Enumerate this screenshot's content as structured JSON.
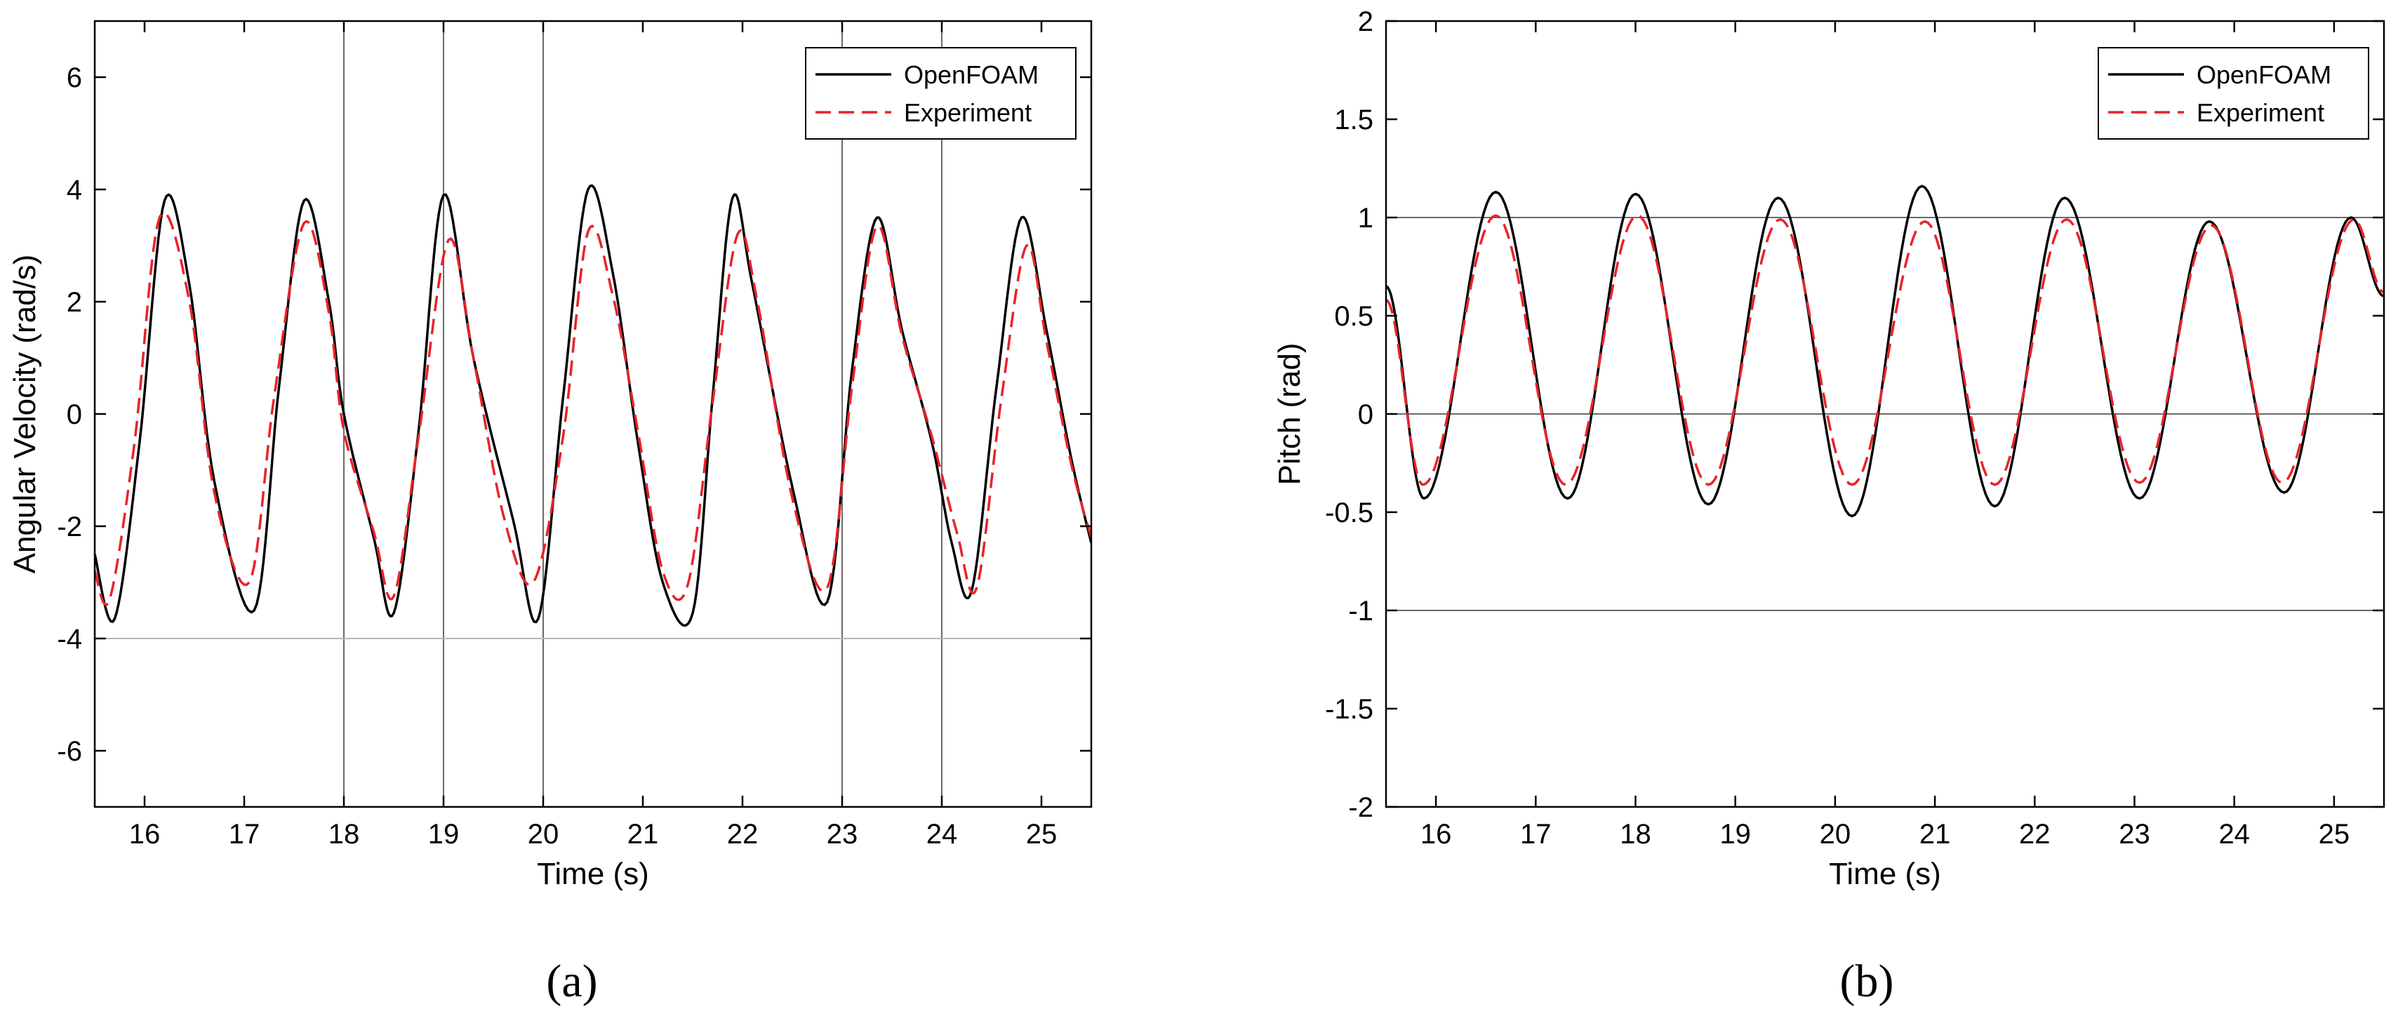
{
  "chart_data": [
    {
      "type": "line",
      "panel_label": "(a)",
      "xlabel": "Time (s)",
      "ylabel": "Angular Velocity (rad/s)",
      "xlim": [
        15.5,
        25.5
      ],
      "ylim": [
        -7,
        7
      ],
      "xticks": [
        16,
        17,
        18,
        19,
        20,
        21,
        22,
        23,
        24,
        25
      ],
      "yticks": [
        -6,
        -4,
        -2,
        0,
        2,
        4,
        6
      ],
      "grid": false,
      "legend_position": "top-right",
      "reference_lines": {
        "vertical_x": [
          18,
          19,
          20,
          23,
          24
        ],
        "horizontal_y": [
          -4
        ]
      },
      "series": [
        {
          "name": "OpenFOAM",
          "color": "#000000",
          "style": "solid",
          "x": [
            15.5,
            15.7,
            15.95,
            16.2,
            16.45,
            16.7,
            17.1,
            17.35,
            17.6,
            17.85,
            18.0,
            18.3,
            18.5,
            18.75,
            19.0,
            19.3,
            19.7,
            19.95,
            20.2,
            20.45,
            20.7,
            20.95,
            21.2,
            21.5,
            21.7,
            21.9,
            22.1,
            22.5,
            22.85,
            23.1,
            23.35,
            23.6,
            23.9,
            24.1,
            24.3,
            24.55,
            24.8,
            25.05,
            25.3,
            25.5
          ],
          "y": [
            -2.5,
            -3.65,
            -0.5,
            3.8,
            2.3,
            -1.2,
            -3.5,
            0.5,
            3.8,
            2.0,
            0.0,
            -2.2,
            -3.55,
            -0.3,
            3.9,
            1.0,
            -1.9,
            -3.65,
            0.3,
            4.0,
            2.5,
            -0.5,
            -3.0,
            -3.55,
            0.3,
            3.85,
            2.3,
            -1.3,
            -3.35,
            0.8,
            3.5,
            1.5,
            -0.5,
            -2.3,
            -3.15,
            0.5,
            3.5,
            1.5,
            -0.8,
            -2.3
          ]
        },
        {
          "name": "Experiment",
          "color": "#e8232b",
          "style": "dashed",
          "x": [
            15.5,
            15.65,
            15.9,
            16.15,
            16.45,
            16.7,
            17.05,
            17.3,
            17.6,
            17.85,
            18.0,
            18.3,
            18.5,
            18.75,
            19.05,
            19.3,
            19.6,
            19.9,
            20.2,
            20.45,
            20.7,
            20.95,
            21.2,
            21.45,
            21.7,
            21.95,
            22.15,
            22.5,
            22.85,
            23.1,
            23.35,
            23.6,
            23.9,
            24.15,
            24.35,
            24.6,
            24.85,
            25.05,
            25.3,
            25.5
          ],
          "y": [
            -2.8,
            -3.3,
            -0.5,
            3.5,
            2.0,
            -1.4,
            -3.0,
            0.3,
            3.4,
            1.8,
            -0.3,
            -2.1,
            -3.25,
            -0.4,
            3.1,
            1.0,
            -1.8,
            -3.0,
            -0.4,
            3.25,
            2.1,
            -0.3,
            -2.8,
            -3.05,
            0.2,
            3.2,
            2.0,
            -1.5,
            -3.1,
            0.5,
            3.35,
            1.4,
            -0.4,
            -2.1,
            -3.1,
            0.3,
            3.0,
            1.3,
            -0.9,
            -2.2
          ]
        }
      ]
    },
    {
      "type": "line",
      "panel_label": "(b)",
      "xlabel": "Time (s)",
      "ylabel": "Pitch (rad)",
      "xlim": [
        15.5,
        25.5
      ],
      "ylim": [
        -2,
        2
      ],
      "xticks": [
        16,
        17,
        18,
        19,
        20,
        21,
        22,
        23,
        24,
        25
      ],
      "yticks": [
        -2,
        -1.5,
        -1,
        -0.5,
        0,
        0.5,
        1,
        1.5,
        2
      ],
      "grid": false,
      "legend_position": "top-right",
      "reference_lines": {
        "vertical_x": [],
        "horizontal_y": [
          1,
          0,
          -1
        ]
      },
      "series": [
        {
          "name": "OpenFOAM",
          "color": "#000000",
          "style": "solid",
          "period": 1.44,
          "mean": 0.35,
          "peaks": [
            {
              "x": 16.6,
              "y": 1.13
            },
            {
              "x": 18.0,
              "y": 1.12
            },
            {
              "x": 19.43,
              "y": 1.1
            },
            {
              "x": 20.87,
              "y": 1.16
            },
            {
              "x": 22.3,
              "y": 1.1
            },
            {
              "x": 23.75,
              "y": 0.98
            },
            {
              "x": 25.17,
              "y": 1.0
            }
          ],
          "troughs": [
            {
              "x": 15.88,
              "y": -0.43
            },
            {
              "x": 17.32,
              "y": -0.43
            },
            {
              "x": 18.73,
              "y": -0.46
            },
            {
              "x": 20.17,
              "y": -0.52
            },
            {
              "x": 21.6,
              "y": -0.47
            },
            {
              "x": 23.05,
              "y": -0.43
            },
            {
              "x": 24.5,
              "y": -0.4
            }
          ],
          "start": {
            "x": 15.5,
            "y": 0.65
          },
          "end": {
            "x": 25.5,
            "y": 0.6
          }
        },
        {
          "name": "Experiment",
          "color": "#e8232b",
          "style": "dashed",
          "period": 1.44,
          "mean": 0.33,
          "peaks": [
            {
              "x": 16.6,
              "y": 1.01
            },
            {
              "x": 18.02,
              "y": 1.01
            },
            {
              "x": 19.45,
              "y": 0.99
            },
            {
              "x": 20.9,
              "y": 0.98
            },
            {
              "x": 22.32,
              "y": 0.99
            },
            {
              "x": 23.77,
              "y": 0.96
            },
            {
              "x": 25.2,
              "y": 0.99
            }
          ],
          "troughs": [
            {
              "x": 15.87,
              "y": -0.36
            },
            {
              "x": 17.3,
              "y": -0.36
            },
            {
              "x": 18.73,
              "y": -0.36
            },
            {
              "x": 20.17,
              "y": -0.36
            },
            {
              "x": 21.6,
              "y": -0.36
            },
            {
              "x": 23.05,
              "y": -0.35
            },
            {
              "x": 24.48,
              "y": -0.35
            }
          ],
          "start": {
            "x": 15.5,
            "y": 0.58
          },
          "end": {
            "x": 25.5,
            "y": 0.62
          }
        }
      ]
    }
  ]
}
